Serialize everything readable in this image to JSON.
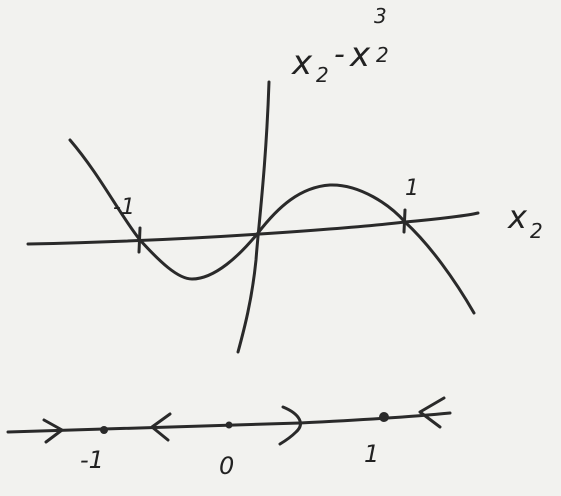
{
  "diagram": {
    "function_label": {
      "base": "x",
      "sub": "2",
      "minus": "-",
      "cube_base": "x",
      "cube_sub": "2",
      "exponent": "3"
    },
    "axis_label": {
      "base": "x",
      "sub": "2"
    },
    "graph_ticks": {
      "left": "-1",
      "right": "1"
    },
    "phase_line": {
      "labels": [
        "-1",
        "0",
        "1"
      ]
    }
  },
  "colors": {
    "ink": "#2a2a2a",
    "paper": "#f2f2ef"
  }
}
